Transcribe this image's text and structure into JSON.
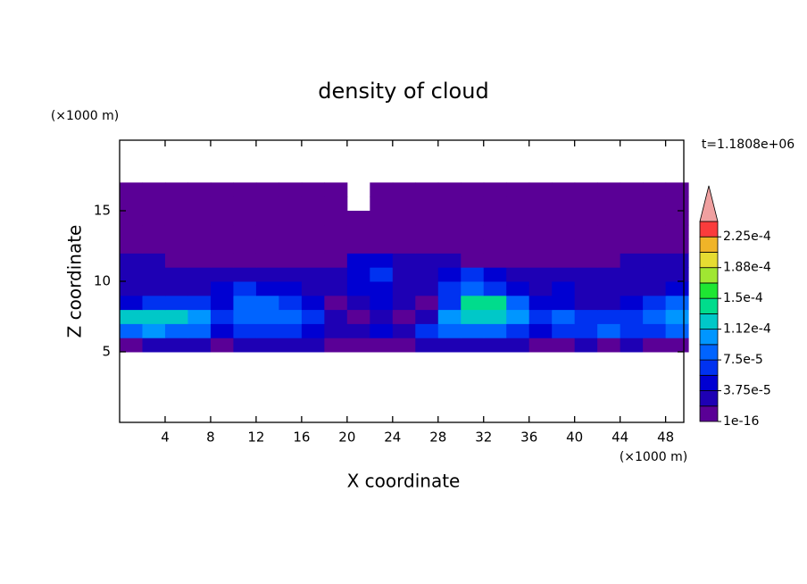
{
  "chart_data": {
    "type": "contour",
    "title": "density of cloud",
    "x_label": "X coordinate",
    "y_label": "Z coordinate",
    "x_unit": "(×1000 m)",
    "y_unit": "(×1000 m)",
    "time_label": "t=1.1808e+06",
    "xlim": [
      0,
      49.6
    ],
    "ylim": [
      0,
      20
    ],
    "xticks": [
      4,
      8,
      12,
      16,
      20,
      24,
      28,
      32,
      36,
      40,
      44,
      48
    ],
    "yticks": [
      5,
      10,
      15
    ],
    "x": [
      1,
      3,
      5,
      7,
      9,
      11,
      13,
      15,
      17,
      19,
      21,
      23,
      25,
      27,
      29,
      31,
      33,
      35,
      37,
      39,
      41,
      43,
      45,
      47,
      49
    ],
    "y": [
      5.5,
      6.5,
      7.5,
      8.5,
      9.5,
      10.5,
      11.5,
      12.5,
      13.5,
      14.5,
      15.5,
      16.5
    ],
    "values": [
      [
        5e-06,
        2.5e-05,
        2.5e-05,
        2.5e-05,
        5e-06,
        2.5e-05,
        2.5e-05,
        2.5e-05,
        2.5e-05,
        5e-06,
        5e-06,
        5e-06,
        5e-06,
        2.5e-05,
        2.5e-05,
        2.5e-05,
        2.5e-05,
        2.5e-05,
        5e-06,
        5e-06,
        2.5e-05,
        5e-06,
        2.5e-05,
        5e-06,
        5e-06
      ],
      [
        8.5e-05,
        0.0001,
        8.5e-05,
        8.5e-05,
        4.5e-05,
        6.5e-05,
        6.5e-05,
        6.5e-05,
        4.5e-05,
        2.5e-05,
        2.5e-05,
        4.5e-05,
        2.5e-05,
        6.5e-05,
        8.5e-05,
        8.5e-05,
        8.5e-05,
        6.5e-05,
        4.5e-05,
        6.5e-05,
        6.5e-05,
        8.5e-05,
        6.5e-05,
        6.5e-05,
        8.5e-05
      ],
      [
        0.00012,
        0.00012,
        0.00012,
        0.0001,
        6.5e-05,
        8.5e-05,
        8.5e-05,
        8.5e-05,
        6.5e-05,
        2.5e-05,
        5e-06,
        2.5e-05,
        5e-06,
        2.5e-05,
        0.0001,
        0.00012,
        0.00012,
        0.0001,
        6.5e-05,
        8.5e-05,
        6.5e-05,
        6.5e-05,
        6.5e-05,
        8.5e-05,
        0.0001
      ],
      [
        4.5e-05,
        6.5e-05,
        6.5e-05,
        6.5e-05,
        4.5e-05,
        8.5e-05,
        8.5e-05,
        6.5e-05,
        4.5e-05,
        5e-06,
        2.5e-05,
        4.5e-05,
        2.5e-05,
        5e-06,
        6.5e-05,
        0.00014,
        0.00014,
        8.5e-05,
        4.5e-05,
        4.5e-05,
        2.5e-05,
        2.5e-05,
        4.5e-05,
        6.5e-05,
        8.5e-05
      ],
      [
        2.5e-05,
        2.5e-05,
        2.5e-05,
        2.5e-05,
        4.5e-05,
        6.5e-05,
        4.5e-05,
        4.5e-05,
        2.5e-05,
        2.5e-05,
        4.5e-05,
        4.5e-05,
        2.5e-05,
        2.5e-05,
        6.5e-05,
        8.5e-05,
        6.5e-05,
        4.5e-05,
        2.5e-05,
        4.5e-05,
        2.5e-05,
        2.5e-05,
        2.5e-05,
        2.5e-05,
        4.5e-05
      ],
      [
        2.5e-05,
        2.5e-05,
        2.5e-05,
        2.5e-05,
        2.5e-05,
        2.5e-05,
        2.5e-05,
        2.5e-05,
        2.5e-05,
        2.5e-05,
        4.5e-05,
        6.5e-05,
        2.5e-05,
        2.5e-05,
        4.5e-05,
        6.5e-05,
        4.5e-05,
        2.5e-05,
        2.5e-05,
        2.5e-05,
        2.5e-05,
        2.5e-05,
        2.5e-05,
        2.5e-05,
        2.5e-05
      ],
      [
        2.5e-05,
        2.5e-05,
        5e-06,
        5e-06,
        5e-06,
        5e-06,
        5e-06,
        5e-06,
        5e-06,
        5e-06,
        4.5e-05,
        4.5e-05,
        2.5e-05,
        2.5e-05,
        2.5e-05,
        5e-06,
        5e-06,
        5e-06,
        5e-06,
        5e-06,
        5e-06,
        5e-06,
        2.5e-05,
        2.5e-05,
        2.5e-05
      ],
      [
        5e-06,
        5e-06,
        5e-06,
        5e-06,
        5e-06,
        5e-06,
        5e-06,
        5e-06,
        5e-06,
        5e-06,
        5e-06,
        5e-06,
        5e-06,
        5e-06,
        5e-06,
        5e-06,
        5e-06,
        5e-06,
        5e-06,
        5e-06,
        5e-06,
        5e-06,
        5e-06,
        5e-06,
        5e-06
      ],
      [
        5e-06,
        5e-06,
        5e-06,
        5e-06,
        5e-06,
        5e-06,
        5e-06,
        5e-06,
        5e-06,
        5e-06,
        5e-06,
        5e-06,
        5e-06,
        5e-06,
        5e-06,
        5e-06,
        5e-06,
        5e-06,
        5e-06,
        5e-06,
        5e-06,
        5e-06,
        5e-06,
        5e-06,
        5e-06
      ],
      [
        5e-06,
        5e-06,
        5e-06,
        5e-06,
        5e-06,
        5e-06,
        5e-06,
        5e-06,
        5e-06,
        5e-06,
        5e-06,
        5e-06,
        5e-06,
        5e-06,
        5e-06,
        5e-06,
        5e-06,
        5e-06,
        5e-06,
        5e-06,
        5e-06,
        5e-06,
        5e-06,
        5e-06,
        5e-06
      ],
      [
        5e-06,
        5e-06,
        5e-06,
        5e-06,
        5e-06,
        5e-06,
        5e-06,
        5e-06,
        5e-06,
        5e-06,
        null,
        5e-06,
        5e-06,
        5e-06,
        5e-06,
        5e-06,
        5e-06,
        5e-06,
        5e-06,
        5e-06,
        5e-06,
        5e-06,
        5e-06,
        5e-06,
        5e-06
      ],
      [
        5e-06,
        5e-06,
        5e-06,
        5e-06,
        5e-06,
        5e-06,
        5e-06,
        5e-06,
        5e-06,
        5e-06,
        null,
        5e-06,
        5e-06,
        5e-06,
        5e-06,
        5e-06,
        5e-06,
        5e-06,
        5e-06,
        5e-06,
        5e-06,
        5e-06,
        5e-06,
        5e-06,
        5e-06
      ]
    ],
    "colorbar": {
      "lim": [
        1e-16,
        0.00024375
      ],
      "ticks": [
        1e-16,
        {
          "value": 3.75e-05,
          "label": "3.75e-5"
        },
        {
          "value": 7.5e-05,
          "label": "7.5e-5"
        },
        {
          "value": 0.0001125,
          "label": "1.12e-4"
        },
        {
          "value": 0.00015,
          "label": "1.5e-4"
        },
        {
          "value": 0.0001875,
          "label": "1.88e-4"
        },
        {
          "value": 0.000225,
          "label": "2.25e-4"
        }
      ],
      "colors": [
        "#5a0096",
        "#1e00b4",
        "#0000d2",
        "#0032f0",
        "#0064ff",
        "#0096ff",
        "#00c8c8",
        "#00dc8c",
        "#1ee632",
        "#a0e632",
        "#e6dc32",
        "#f0b428",
        "#fa3c3c"
      ],
      "extend_color": "#f0a0a0"
    }
  }
}
